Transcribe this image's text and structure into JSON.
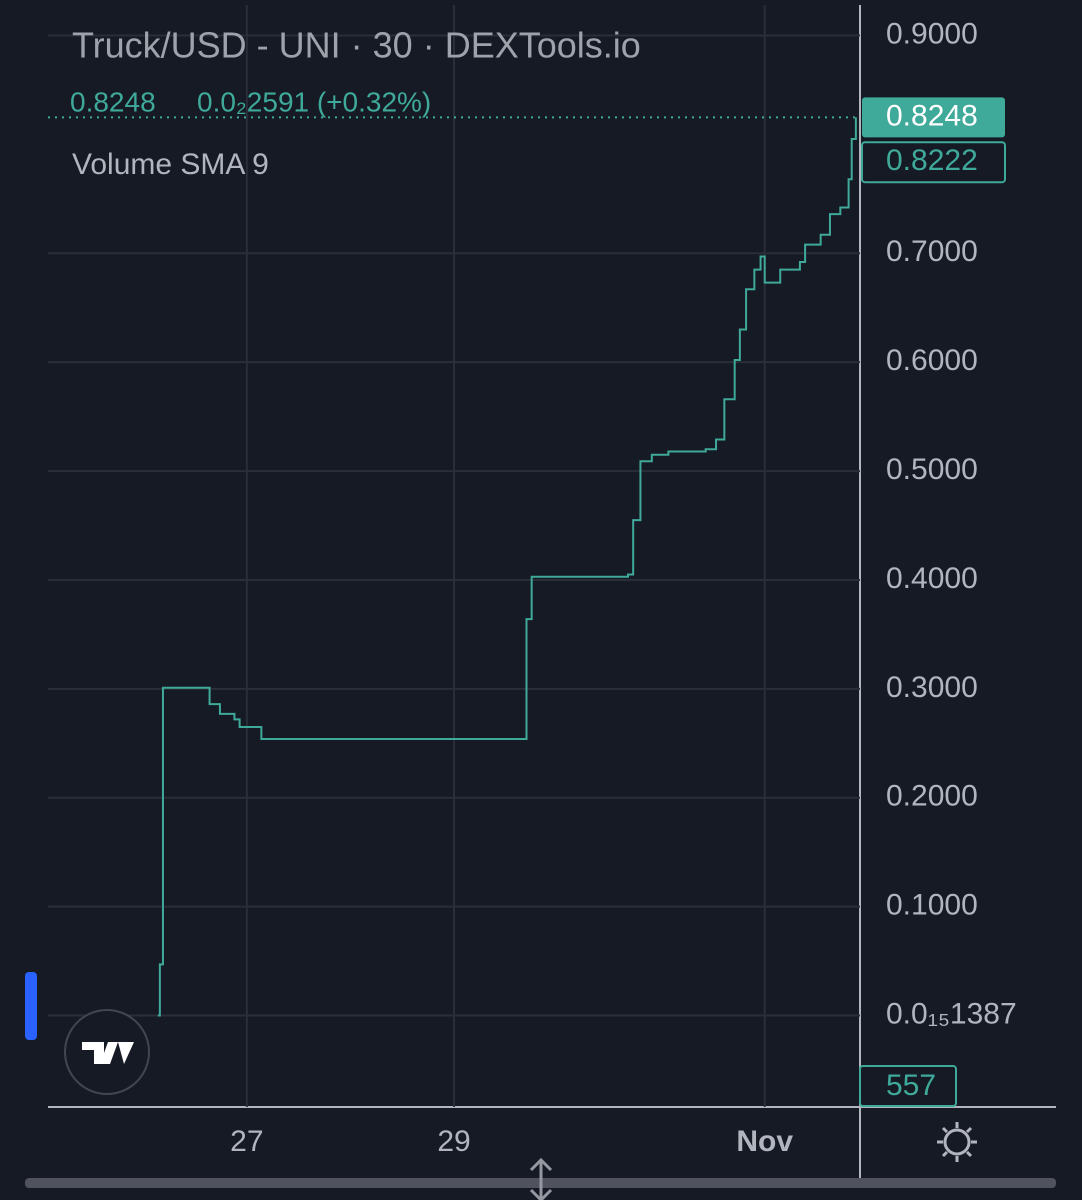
{
  "chart_data": {
    "type": "step-line",
    "title": "Truck/USD - UNI · 30 · DEXTools.io",
    "last_price": 0.8248,
    "change_label": "0.0₂2591 (+0.32%)",
    "indicator": "Volume SMA 9",
    "prev_close": 0.8222,
    "last_volume": 557,
    "x": [
      26.14,
      26.16,
      26.19,
      26.35,
      26.61,
      26.64,
      26.74,
      26.88,
      26.93,
      27.14,
      29.68,
      29.7,
      29.75,
      30.68,
      30.73,
      30.8,
      30.91,
      31.07,
      31.43,
      31.53,
      31.61,
      31.71,
      31.76,
      31.82,
      31.9,
      31.96,
      32.0,
      32.15,
      32.34,
      32.39,
      32.54,
      32.63,
      32.73,
      32.81,
      32.84,
      32.88
    ],
    "series": [
      {
        "name": "Truck/USD",
        "color": "#3fa99a",
        "values": [
          0.0,
          0.047,
          0.301,
          0.301,
          0.301,
          0.286,
          0.277,
          0.272,
          0.265,
          0.254,
          0.254,
          0.364,
          0.403,
          0.405,
          0.455,
          0.509,
          0.515,
          0.518,
          0.52,
          0.529,
          0.566,
          0.602,
          0.63,
          0.667,
          0.685,
          0.697,
          0.673,
          0.685,
          0.692,
          0.708,
          0.717,
          0.736,
          0.742,
          0.768,
          0.805,
          0.8248
        ]
      }
    ],
    "xlim": [
      25.08,
      32.92
    ],
    "xticks": [
      {
        "value": 27,
        "label": "27"
      },
      {
        "value": 29,
        "label": "29"
      },
      {
        "value": 32,
        "label": "Nov"
      }
    ],
    "ylim": [
      -0.084,
      0.928
    ],
    "yticks": [
      {
        "value": 0.9,
        "label": "0.9000"
      },
      {
        "value": 0.7,
        "label": "0.7000"
      },
      {
        "value": 0.6,
        "label": "0.6000"
      },
      {
        "value": 0.5,
        "label": "0.5000"
      },
      {
        "value": 0.4,
        "label": "0.4000"
      },
      {
        "value": 0.3,
        "label": "0.3000"
      },
      {
        "value": 0.2,
        "label": "0.2000"
      },
      {
        "value": 0.1,
        "label": "0.1000"
      },
      {
        "value": 1.387e-16,
        "label": "0.0₁₅1387"
      }
    ],
    "grid": true
  }
}
